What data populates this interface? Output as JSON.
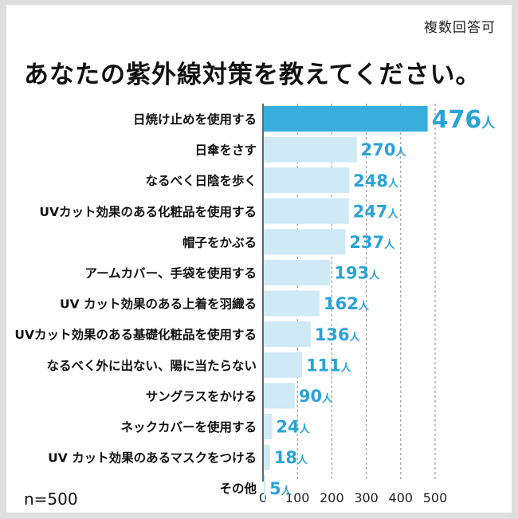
{
  "note": "複数回答可",
  "title": "あなたの紫外線対策を教えてください。",
  "sample": "n=500",
  "colors": {
    "highlight": "#39aedd",
    "bar": "#cfe9f5",
    "value": "#2aa3d6"
  },
  "chart_data": {
    "type": "bar",
    "orientation": "horizontal",
    "title": "あなたの紫外線対策を教えてください。",
    "unit": "人",
    "xlim": [
      0,
      500
    ],
    "xticks": [
      0,
      100,
      200,
      300,
      400,
      500
    ],
    "grid": "vertical dashed",
    "categories": [
      "日焼け止めを使用する",
      "日傘をさす",
      "なるべく日陰を歩く",
      "UVカット効果のある化粧品を使用する",
      "帽子をかぶる",
      "アームカバー、手袋を使用する",
      "UV カット効果のある上着を羽織る",
      "UVカット効果のある基礎化粧品を使用する",
      "なるべく外に出ない、陽に当たらない",
      "サングラスをかける",
      "ネックカバーを使用する",
      "UV カット効果のあるマスクをつける",
      "その他"
    ],
    "values": [
      476,
      270,
      248,
      247,
      237,
      193,
      162,
      136,
      111,
      90,
      24,
      18,
      5
    ]
  }
}
